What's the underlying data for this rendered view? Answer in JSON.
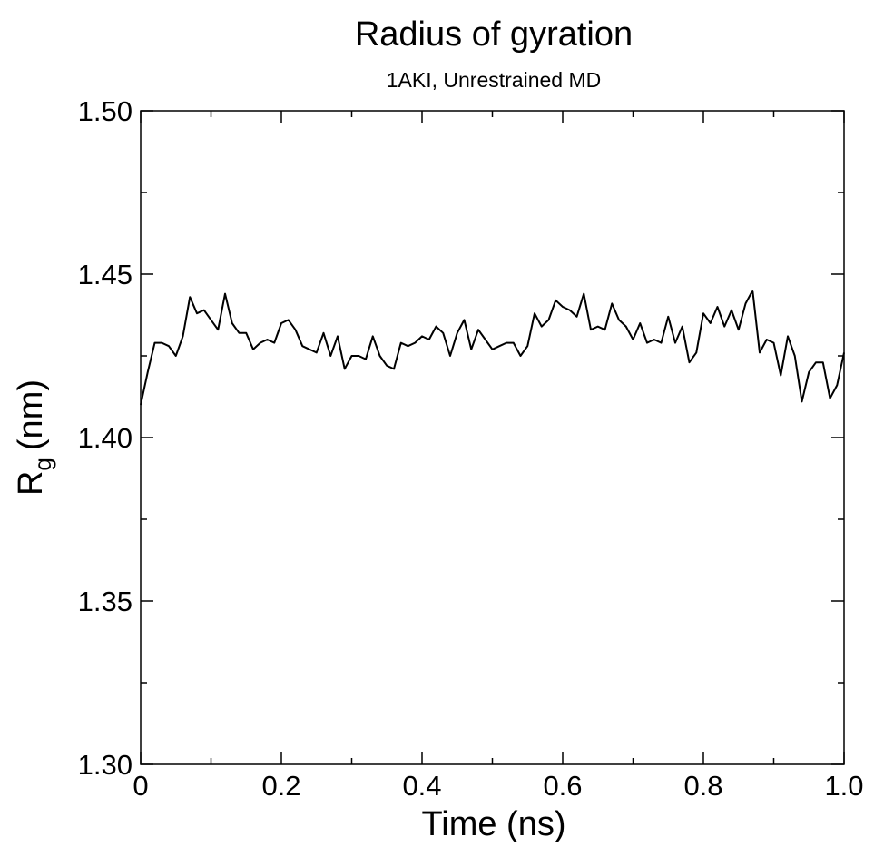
{
  "chart_data": {
    "type": "line",
    "title": "Radius of gyration",
    "subtitle": "1AKI, Unrestrained MD",
    "xlabel": "Time (ns)",
    "ylabel_main": "R",
    "ylabel_sub": "g",
    "ylabel_unit": "(nm)",
    "xlim": [
      0,
      1.0
    ],
    "ylim": [
      1.3,
      1.5
    ],
    "x_ticks": [
      "0",
      "0.2",
      "0.4",
      "0.6",
      "0.8",
      "1.0"
    ],
    "y_ticks": [
      "1.30",
      "1.35",
      "1.40",
      "1.45",
      "1.50"
    ],
    "grid": false,
    "line_color": "#000000",
    "series": [
      {
        "x": [
          0.0,
          0.01,
          0.02,
          0.03,
          0.04,
          0.05,
          0.06,
          0.07,
          0.08,
          0.09,
          0.1,
          0.11,
          0.12,
          0.13,
          0.14,
          0.15,
          0.16,
          0.17,
          0.18,
          0.19,
          0.2,
          0.21,
          0.22,
          0.23,
          0.24,
          0.25,
          0.26,
          0.27,
          0.28,
          0.29,
          0.3,
          0.31,
          0.32,
          0.33,
          0.34,
          0.35,
          0.36,
          0.37,
          0.38,
          0.39,
          0.4,
          0.41,
          0.42,
          0.43,
          0.44,
          0.45,
          0.46,
          0.47,
          0.48,
          0.49,
          0.5,
          0.51,
          0.52,
          0.53,
          0.54,
          0.55,
          0.56,
          0.57,
          0.58,
          0.59,
          0.6,
          0.61,
          0.62,
          0.63,
          0.64,
          0.65,
          0.66,
          0.67,
          0.68,
          0.69,
          0.7,
          0.71,
          0.72,
          0.73,
          0.74,
          0.75,
          0.76,
          0.77,
          0.78,
          0.79,
          0.8,
          0.81,
          0.82,
          0.83,
          0.84,
          0.85,
          0.86,
          0.87,
          0.88,
          0.89,
          0.9,
          0.91,
          0.92,
          0.93,
          0.94,
          0.95,
          0.96,
          0.97,
          0.98,
          0.99,
          1.0
        ],
        "y": [
          1.41,
          1.42,
          1.429,
          1.429,
          1.428,
          1.425,
          1.431,
          1.443,
          1.438,
          1.439,
          1.436,
          1.433,
          1.444,
          1.435,
          1.432,
          1.432,
          1.427,
          1.429,
          1.43,
          1.429,
          1.435,
          1.436,
          1.433,
          1.428,
          1.427,
          1.426,
          1.432,
          1.425,
          1.431,
          1.421,
          1.425,
          1.425,
          1.424,
          1.431,
          1.425,
          1.422,
          1.421,
          1.429,
          1.428,
          1.429,
          1.431,
          1.43,
          1.434,
          1.432,
          1.425,
          1.432,
          1.436,
          1.427,
          1.433,
          1.43,
          1.427,
          1.428,
          1.429,
          1.429,
          1.425,
          1.428,
          1.438,
          1.434,
          1.436,
          1.442,
          1.44,
          1.439,
          1.437,
          1.444,
          1.433,
          1.434,
          1.433,
          1.441,
          1.436,
          1.434,
          1.43,
          1.435,
          1.429,
          1.43,
          1.429,
          1.437,
          1.429,
          1.434,
          1.423,
          1.426,
          1.438,
          1.435,
          1.44,
          1.434,
          1.439,
          1.433,
          1.441,
          1.445,
          1.426,
          1.43,
          1.429,
          1.419,
          1.431,
          1.425,
          1.411,
          1.42,
          1.423,
          1.423,
          1.412,
          1.416,
          1.426
        ]
      }
    ]
  }
}
